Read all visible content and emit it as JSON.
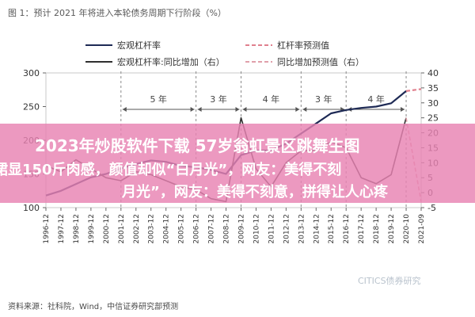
{
  "figure": {
    "title": "图 1：预计 2021 年将进入本轮债务周期下行阶段（%）",
    "source": "资料来源：社科院，Wind，中信证券研究部预测",
    "watermark": "CITICS债券研究"
  },
  "banner": {
    "line1": "2023年炒股软件下载 57岁翁虹景区跳舞生图",
    "line2": "裙显150斤肉感，颜值却似“白月光”，网友：美得不刻",
    "line3": "月光”，网友：美得不刻意，拼得让人心疼",
    "color": "#e882b2"
  },
  "chart_data": {
    "type": "line",
    "title": "图 1：预计 2021 年将进入本轮债务周期下行阶段（%）",
    "legend": [
      {
        "label": "宏观杠杆率",
        "color": "#1e2a55",
        "style": "solid"
      },
      {
        "label": "杠杆率预测值",
        "color": "#e0808e",
        "style": "dashed"
      },
      {
        "label": "宏观杠杆率:同比增加（右）",
        "color": "#2f2f2f",
        "style": "solid"
      },
      {
        "label": "同比增加预测值（右）",
        "color": "#e0a0aa",
        "style": "dashed"
      }
    ],
    "legend_position": "top",
    "y_left": {
      "min": 100,
      "max": 300,
      "ticks": [
        100,
        150,
        200,
        250,
        300
      ]
    },
    "y_right": {
      "min": -5,
      "max": 40,
      "ticks": [
        -5,
        0,
        5,
        10,
        15,
        20,
        25,
        30,
        35,
        40
      ]
    },
    "x_labels": [
      "1996-12",
      "1997-12",
      "1998-12",
      "1999-12",
      "2000-12",
      "2001-12",
      "2002-12",
      "2003-12",
      "2004-12",
      "2005-12",
      "2006-12",
      "2007-12",
      "2008-12",
      "2009-12",
      "2010-12",
      "2011-12",
      "2012-12",
      "2013-12",
      "2014-12",
      "2015-12",
      "2016-12",
      "2017-12",
      "2018-12",
      "2019-12",
      "2020-10",
      "2021-09"
    ],
    "annotations": [
      {
        "text": "5 年",
        "from": "2001-12",
        "to": "2006-12"
      },
      {
        "text": "3 年",
        "from": "2006-12",
        "to": "2009-12"
      },
      {
        "text": "4 年",
        "from": "2009-12",
        "to": "2013-12"
      },
      {
        "text": "3 年",
        "from": "2013-12",
        "to": "2016-12"
      },
      {
        "text": "4 年",
        "from": "2016-12",
        "to": "2020-10"
      }
    ],
    "cycle_markers": [
      "2001-12",
      "2006-12",
      "2009-12",
      "2013-12",
      "2016-12",
      "2020-10"
    ],
    "series": [
      {
        "name": "宏观杠杆率",
        "axis": "left",
        "x": [
          "1996-12",
          "1997-12",
          "1998-12",
          "1999-12",
          "2000-12",
          "2001-12",
          "2002-12",
          "2003-12",
          "2004-12",
          "2005-12",
          "2006-12",
          "2007-12",
          "2008-12",
          "2009-12",
          "2010-12",
          "2011-12",
          "2012-12",
          "2013-12",
          "2014-12",
          "2015-12",
          "2016-12",
          "2017-12",
          "2018-12",
          "2019-12",
          "2020-10"
        ],
        "values": [
          118,
          125,
          135,
          145,
          150,
          158,
          165,
          170,
          168,
          162,
          160,
          156,
          150,
          178,
          185,
          185,
          195,
          210,
          225,
          240,
          245,
          248,
          250,
          255,
          273
        ]
      },
      {
        "name": "杠杆率预测值",
        "axis": "left",
        "x": [
          "2020-10",
          "2021-09"
        ],
        "values": [
          273,
          276
        ]
      },
      {
        "name": "宏观杠杆率:同比增加（右）",
        "axis": "right",
        "x": [
          "1996-12",
          "1997-12",
          "1998-12",
          "1999-12",
          "2000-12",
          "2001-12",
          "2002-12",
          "2003-12",
          "2004-12",
          "2005-12",
          "2006-12",
          "2007-12",
          "2008-12",
          "2009-12",
          "2010-12",
          "2011-12",
          "2012-12",
          "2013-12",
          "2014-12",
          "2015-12",
          "2016-12",
          "2017-12",
          "2018-12",
          "2019-12",
          "2020-10"
        ],
        "values": [
          9,
          7,
          11,
          8,
          5,
          4,
          7,
          6,
          4,
          2,
          1,
          -2,
          -3,
          25,
          8,
          2,
          10,
          14,
          14,
          17,
          15,
          5,
          3,
          6,
          25
        ]
      },
      {
        "name": "同比增加预测值（右）",
        "axis": "right",
        "x": [
          "2020-10",
          "2021-09"
        ],
        "values": [
          25,
          -3
        ]
      }
    ]
  }
}
